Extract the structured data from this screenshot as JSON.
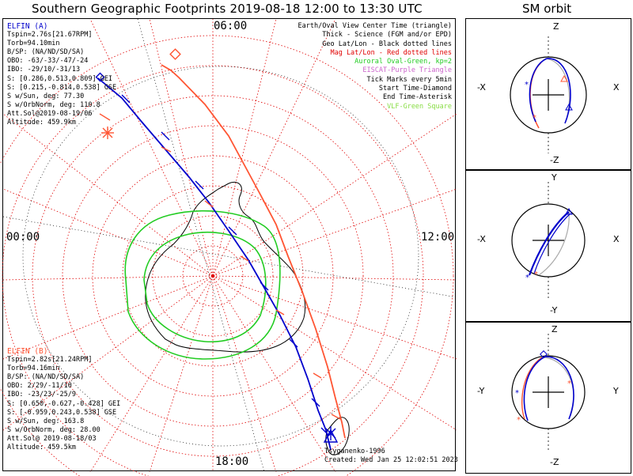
{
  "title": "Southern Geographic Footprints 2019-08-18 12:00 to 13:30 UTC",
  "sm_title": "SM orbit",
  "hour_labels": {
    "top": "06:00",
    "left": "00:00",
    "right": "12:00",
    "bottom": "18:00"
  },
  "legend": [
    {
      "text": "Earth/Oval View Center Time (triangle)",
      "color": "#000000"
    },
    {
      "text": "Thick - Science (FGM and/or EPD)",
      "color": "#000000"
    },
    {
      "text": "Geo Lat/Lon - Black dotted lines",
      "color": "#000000"
    },
    {
      "text": "Mag Lat/Lon - Red dotted lines",
      "color": "#e00000"
    },
    {
      "text": "Auroral Oval-Green, kp=2",
      "color": "#22cc22"
    },
    {
      "text": "EISCAT-Purple Triangle",
      "color": "#cc66cc"
    },
    {
      "text": "Tick Marks every 5min",
      "color": "#000000"
    },
    {
      "text": "Start Time-Diamond",
      "color": "#000000"
    },
    {
      "text": "End Time-Asterisk",
      "color": "#000000"
    },
    {
      "text": "VLF-Green Square",
      "color": "#88dd44"
    }
  ],
  "elfin_a": {
    "name": "ELFIN (A)",
    "color": "#0000cc",
    "lines": [
      "Tspin=2.76s[21.67RPM]",
      "Torb=94.10min",
      "B/SP: (NA/ND/SD/SA)",
      "OBO: -63/-33/-47/-24",
      "IBO: -29/10/-31/13",
      "S: [0.286,0.513,0.809] GEI",
      "S: [0.215,-0.814,0.538] GSE",
      "S w/Sun, deg: 77.30",
      "S w/OrbNorm, deg: 110.8",
      "Att.Sol@2019-08-19/06",
      "Altitude: 459.9km"
    ]
  },
  "elfin_b": {
    "name": "ELFIN (B)",
    "color": "#ff5533",
    "lines": [
      "Tspin=2.82s[21.24RPM]",
      "Torb=94.16min",
      "B/SP: (NA/ND/SD/SA)",
      "OBO: 2/29/-11/10",
      "IBO: -23/23/-25/9",
      "S: [0.650,-0.627,-0.428] GEI",
      "S: [-0.959,0.243,0.538] GSE",
      "S w/Sun, deg: 163.8",
      "S w/OrbNorm, deg: 28.00",
      "Att.Sol@ 2019-08-18/03",
      "Altitude: 459.5km"
    ]
  },
  "footer": {
    "model": "Tsyganenko-1996",
    "created": "Created: Wed Jan 25 12:02:51 2023"
  },
  "sm_panels": [
    {
      "h_left": "-X",
      "h_right": "X",
      "v_top": "Z",
      "v_bottom": "-Z"
    },
    {
      "h_left": "-X",
      "h_right": "X",
      "v_top": "Y",
      "v_bottom": "-Y"
    },
    {
      "h_left": "-Y",
      "h_right": "Y",
      "v_top": "Z",
      "v_bottom": "-Z"
    }
  ],
  "colors": {
    "elfin_a_track": "#0000cc",
    "elfin_b_track": "#ff5533",
    "auroral_oval": "#22cc22",
    "mag_grid": "#e00000",
    "geo_grid": "#000000",
    "orbit_gray": "#aaaaaa"
  }
}
